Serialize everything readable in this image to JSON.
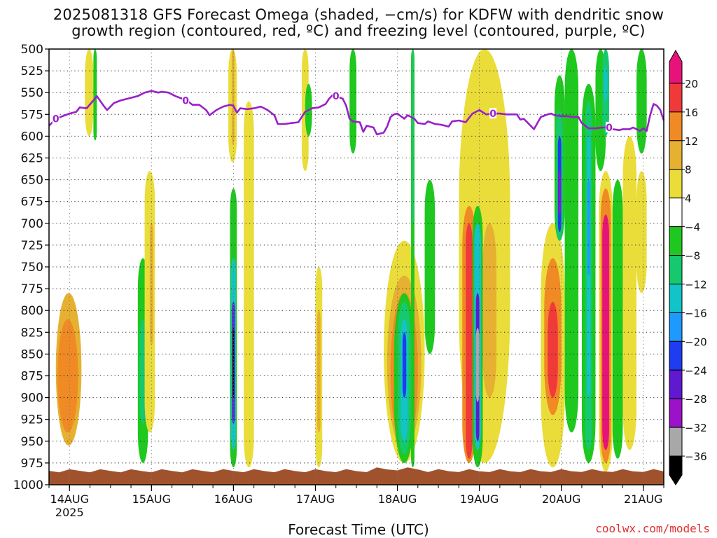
{
  "title_line1": "2025081318 GFS Forecast Omega (shaded, −cm/s) for KDFW with dendritic snow",
  "title_line2": "growth region (contoured, red, ºC) and freezing level (contoured, purple, ºC)",
  "xlabel": "Forecast Time (UTC)",
  "credit": "coolwx.com/models",
  "colors": {
    "freezing_line": "#9a1fc9",
    "ground": "#a0522d",
    "grid": "#9a9a9a"
  },
  "chart_data": {
    "type": "heatmap",
    "title": "2025081318 GFS Forecast Omega (shaded, −cm/s) for KDFW with dendritic snow growth region (contoured, red, ºC) and freezing level (contoured, purple, ºC)",
    "xlabel": "Forecast Time (UTC)",
    "ylabel": "",
    "y_axis": {
      "reversed": true,
      "range": [
        500,
        1000
      ],
      "ticks": [
        "500",
        "525",
        "550",
        "575",
        "600",
        "625",
        "650",
        "675",
        "700",
        "725",
        "750",
        "775",
        "800",
        "825",
        "850",
        "875",
        "900",
        "925",
        "950",
        "975",
        "1000"
      ]
    },
    "x_axis": {
      "unit": "hours since 2025-08-13 18Z",
      "range": [
        0,
        180
      ],
      "ticks": [
        {
          "hour": 6,
          "label": "14AUG",
          "sublabel": "2025"
        },
        {
          "hour": 30,
          "label": "15AUG"
        },
        {
          "hour": 54,
          "label": "16AUG"
        },
        {
          "hour": 78,
          "label": "17AUG"
        },
        {
          "hour": 102,
          "label": "18AUG"
        },
        {
          "hour": 126,
          "label": "19AUG"
        },
        {
          "hour": 150,
          "label": "20AUG"
        },
        {
          "hour": 174,
          "label": "21AUG"
        }
      ]
    },
    "grid": true,
    "colorbar": {
      "position": "right",
      "labels": [
        "20",
        "16",
        "12",
        "8",
        "4",
        "−4",
        "−8",
        "−12",
        "−16",
        "−20",
        "−24",
        "−28",
        "−32",
        "−36"
      ],
      "bins": [
        {
          "from": 20,
          "to": 24,
          "color": "#e8137a"
        },
        {
          "from": 16,
          "to": 20,
          "color": "#f03a3a"
        },
        {
          "from": 12,
          "to": 16,
          "color": "#f08a24"
        },
        {
          "from": 8,
          "to": 12,
          "color": "#e6b030"
        },
        {
          "from": 4,
          "to": 8,
          "color": "#eadd3a"
        },
        {
          "from": -4,
          "to": 4,
          "color": "#ffffff"
        },
        {
          "from": -8,
          "to": -4,
          "color": "#1ec81e"
        },
        {
          "from": -12,
          "to": -8,
          "color": "#16c86e"
        },
        {
          "from": -16,
          "to": -12,
          "color": "#12c4c8"
        },
        {
          "from": -20,
          "to": -16,
          "color": "#1e9aff"
        },
        {
          "from": -24,
          "to": -20,
          "color": "#1e3cf0"
        },
        {
          "from": -28,
          "to": -24,
          "color": "#6018d0"
        },
        {
          "from": -32,
          "to": -28,
          "color": "#9c12c8"
        },
        {
          "from": -36,
          "to": -32,
          "color": "#a8a8a8"
        },
        {
          "from": -40,
          "to": -36,
          "color": "#000000"
        }
      ]
    },
    "freezing_level": {
      "label": "0",
      "label_hours": [
        2,
        40,
        84,
        130,
        164
      ],
      "points": [
        [
          0,
          588
        ],
        [
          2,
          580
        ],
        [
          4,
          577
        ],
        [
          6,
          574
        ],
        [
          8,
          572
        ],
        [
          9,
          567
        ],
        [
          11,
          568
        ],
        [
          13,
          559
        ],
        [
          14,
          554
        ],
        [
          16,
          565
        ],
        [
          17,
          570
        ],
        [
          19,
          562
        ],
        [
          21,
          559
        ],
        [
          23,
          557
        ],
        [
          25,
          555
        ],
        [
          26,
          554
        ],
        [
          28,
          550
        ],
        [
          30,
          548
        ],
        [
          31,
          549
        ],
        [
          32,
          550
        ],
        [
          33,
          549
        ],
        [
          35,
          550
        ],
        [
          37,
          554
        ],
        [
          39,
          557
        ],
        [
          41,
          561
        ],
        [
          42,
          564
        ],
        [
          44,
          564
        ],
        [
          46,
          570
        ],
        [
          47,
          576
        ],
        [
          49,
          570
        ],
        [
          51,
          566
        ],
        [
          53,
          564
        ],
        [
          54,
          565
        ],
        [
          55,
          573
        ],
        [
          56,
          568
        ],
        [
          58,
          569
        ],
        [
          60,
          568
        ],
        [
          62,
          566
        ],
        [
          64,
          570
        ],
        [
          66,
          576
        ],
        [
          67,
          586
        ],
        [
          69,
          586
        ],
        [
          71,
          585
        ],
        [
          73,
          584
        ],
        [
          75,
          572
        ],
        [
          77,
          568
        ],
        [
          79,
          567
        ],
        [
          81,
          563
        ],
        [
          82,
          557
        ],
        [
          83,
          553
        ],
        [
          84,
          554
        ],
        [
          86,
          557
        ],
        [
          87,
          565
        ],
        [
          88,
          580
        ],
        [
          89,
          583
        ],
        [
          91,
          584
        ],
        [
          92,
          595
        ],
        [
          93,
          588
        ],
        [
          95,
          590
        ],
        [
          96,
          598
        ],
        [
          98,
          596
        ],
        [
          99,
          589
        ],
        [
          100,
          578
        ],
        [
          101,
          575
        ],
        [
          102,
          574
        ],
        [
          104,
          580
        ],
        [
          105,
          576
        ],
        [
          107,
          580
        ],
        [
          108,
          585
        ],
        [
          110,
          586
        ],
        [
          111,
          583
        ],
        [
          113,
          586
        ],
        [
          115,
          587
        ],
        [
          117,
          589
        ],
        [
          118,
          583
        ],
        [
          120,
          582
        ],
        [
          122,
          584
        ],
        [
          124,
          574
        ],
        [
          126,
          570
        ],
        [
          128,
          575
        ],
        [
          130,
          574
        ],
        [
          132,
          574
        ],
        [
          134,
          575
        ],
        [
          137,
          575
        ],
        [
          138,
          581
        ],
        [
          139,
          580
        ],
        [
          141,
          588
        ],
        [
          142,
          592
        ],
        [
          144,
          578
        ],
        [
          146,
          575
        ],
        [
          147,
          574
        ],
        [
          148,
          576
        ],
        [
          150,
          577
        ],
        [
          152,
          577
        ],
        [
          153,
          578
        ],
        [
          155,
          578
        ],
        [
          156,
          585
        ],
        [
          158,
          591
        ],
        [
          160,
          591
        ],
        [
          162,
          590
        ],
        [
          164,
          590
        ],
        [
          165,
          592
        ],
        [
          167,
          593
        ],
        [
          168,
          592
        ],
        [
          170,
          592
        ],
        [
          171,
          590
        ],
        [
          172,
          592
        ],
        [
          173,
          594
        ],
        [
          174,
          591
        ],
        [
          175,
          594
        ],
        [
          176,
          576
        ],
        [
          177,
          563
        ],
        [
          178,
          565
        ],
        [
          179,
          570
        ],
        [
          180,
          582
        ]
      ]
    },
    "omega_features": [
      {
        "h0": 2,
        "h1": 9.5,
        "p0": 780,
        "p1": 955,
        "value": 8
      },
      {
        "h0": 2.5,
        "h1": 8.5,
        "p0": 810,
        "p1": 940,
        "value": 12
      },
      {
        "h0": 10.5,
        "h1": 13,
        "p0": 500,
        "p1": 600,
        "value": 4
      },
      {
        "h0": 13,
        "h1": 14,
        "p0": 500,
        "p1": 605,
        "value": -8
      },
      {
        "h0": 26,
        "h1": 29,
        "p0": 740,
        "p1": 975,
        "value": -8
      },
      {
        "h0": 26.5,
        "h1": 28.5,
        "p0": 810,
        "p1": 930,
        "value": -12
      },
      {
        "h0": 28,
        "h1": 31,
        "p0": 640,
        "p1": 940,
        "value": 4
      },
      {
        "h0": 29.5,
        "h1": 30.5,
        "p0": 700,
        "p1": 840,
        "value": 8
      },
      {
        "h0": 52.5,
        "h1": 55,
        "p0": 500,
        "p1": 630,
        "value": 4
      },
      {
        "h0": 53.5,
        "h1": 54.3,
        "p0": 500,
        "p1": 610,
        "value": 8
      },
      {
        "h0": 53,
        "h1": 55,
        "p0": 660,
        "p1": 980,
        "value": -8
      },
      {
        "h0": 53.3,
        "h1": 54.7,
        "p0": 740,
        "p1": 960,
        "value": -16
      },
      {
        "h0": 53.6,
        "h1": 54.4,
        "p0": 790,
        "p1": 930,
        "value": -28
      },
      {
        "h0": 53.8,
        "h1": 54.2,
        "p0": 820,
        "p1": 900,
        "value": -40
      },
      {
        "h0": 57,
        "h1": 60,
        "p0": 560,
        "p1": 980,
        "value": 4
      },
      {
        "h0": 74,
        "h1": 76,
        "p0": 500,
        "p1": 640,
        "value": 4
      },
      {
        "h0": 75,
        "h1": 77,
        "p0": 540,
        "p1": 600,
        "value": -8
      },
      {
        "h0": 78,
        "h1": 80,
        "p0": 750,
        "p1": 980,
        "value": 4
      },
      {
        "h0": 78.5,
        "h1": 79.5,
        "p0": 800,
        "p1": 940,
        "value": 8
      },
      {
        "h0": 88,
        "h1": 90,
        "p0": 500,
        "p1": 620,
        "value": -8
      },
      {
        "h0": 98,
        "h1": 110,
        "p0": 720,
        "p1": 975,
        "value": 4
      },
      {
        "h0": 99,
        "h1": 109,
        "p0": 760,
        "p1": 960,
        "value": 8
      },
      {
        "h0": 100,
        "h1": 108,
        "p0": 780,
        "p1": 960,
        "value": 12
      },
      {
        "h0": 101,
        "h1": 107,
        "p0": 780,
        "p1": 975,
        "value": -8
      },
      {
        "h0": 102,
        "h1": 106,
        "p0": 790,
        "p1": 965,
        "value": -12
      },
      {
        "h0": 103,
        "h1": 105,
        "p0": 810,
        "p1": 950,
        "value": -16
      },
      {
        "h0": 103.5,
        "h1": 104.6,
        "p0": 825,
        "p1": 900,
        "value": -24
      },
      {
        "h0": 106,
        "h1": 107,
        "p0": 500,
        "p1": 980,
        "value": -8
      },
      {
        "h0": 106.3,
        "h1": 106.8,
        "p0": 500,
        "p1": 700,
        "value": -12
      },
      {
        "h0": 110,
        "h1": 113,
        "p0": 650,
        "p1": 850,
        "value": -8
      },
      {
        "h0": 120,
        "h1": 135,
        "p0": 500,
        "p1": 975,
        "value": 4
      },
      {
        "h0": 121,
        "h1": 125,
        "p0": 680,
        "p1": 975,
        "value": 12
      },
      {
        "h0": 122,
        "h1": 124,
        "p0": 700,
        "p1": 970,
        "value": 16
      },
      {
        "h0": 124,
        "h1": 127,
        "p0": 680,
        "p1": 980,
        "value": -8
      },
      {
        "h0": 124.5,
        "h1": 126.5,
        "p0": 700,
        "p1": 960,
        "value": -16
      },
      {
        "h0": 125,
        "h1": 126,
        "p0": 780,
        "p1": 950,
        "value": -28
      },
      {
        "h0": 125,
        "h1": 126,
        "p0": 820,
        "p1": 905,
        "value": -36
      },
      {
        "h0": 127,
        "h1": 131,
        "p0": 700,
        "p1": 900,
        "value": 8
      },
      {
        "h0": 144,
        "h1": 151,
        "p0": 700,
        "p1": 980,
        "value": 4
      },
      {
        "h0": 145,
        "h1": 150,
        "p0": 740,
        "p1": 920,
        "value": 12
      },
      {
        "h0": 146,
        "h1": 149,
        "p0": 790,
        "p1": 900,
        "value": 16
      },
      {
        "h0": 148,
        "h1": 151,
        "p0": 530,
        "p1": 720,
        "value": -8
      },
      {
        "h0": 148.5,
        "h1": 150.5,
        "p0": 570,
        "p1": 720,
        "value": -12
      },
      {
        "h0": 149,
        "h1": 150,
        "p0": 600,
        "p1": 710,
        "value": -24
      },
      {
        "h0": 149.2,
        "h1": 149.8,
        "p0": 640,
        "p1": 690,
        "value": -32
      },
      {
        "h0": 151,
        "h1": 155,
        "p0": 500,
        "p1": 940,
        "value": -8
      },
      {
        "h0": 156,
        "h1": 160,
        "p0": 540,
        "p1": 975,
        "value": -8
      },
      {
        "h0": 157,
        "h1": 159,
        "p0": 560,
        "p1": 960,
        "value": -12
      },
      {
        "h0": 157.5,
        "h1": 158.5,
        "p0": 600,
        "p1": 900,
        "value": -16
      },
      {
        "h0": 157.6,
        "h1": 158.4,
        "p0": 650,
        "p1": 760,
        "value": -20
      },
      {
        "h0": 160,
        "h1": 163,
        "p0": 500,
        "p1": 640,
        "value": -8
      },
      {
        "h0": 161,
        "h1": 165,
        "p0": 640,
        "p1": 985,
        "value": 4
      },
      {
        "h0": 161.5,
        "h1": 164.5,
        "p0": 660,
        "p1": 975,
        "value": 12
      },
      {
        "h0": 162,
        "h1": 164,
        "p0": 690,
        "p1": 960,
        "value": 20
      },
      {
        "h0": 162,
        "h1": 164,
        "p0": 500,
        "p1": 600,
        "value": -12
      },
      {
        "h0": 162.5,
        "h1": 163.5,
        "p0": 520,
        "p1": 560,
        "value": -16
      },
      {
        "h0": 165,
        "h1": 168,
        "p0": 650,
        "p1": 970,
        "value": -8
      },
      {
        "h0": 168,
        "h1": 172,
        "p0": 600,
        "p1": 960,
        "value": 4
      },
      {
        "h0": 172,
        "h1": 175,
        "p0": 500,
        "p1": 620,
        "value": -8
      },
      {
        "h0": 172,
        "h1": 175,
        "p0": 640,
        "p1": 780,
        "value": 4
      }
    ]
  }
}
